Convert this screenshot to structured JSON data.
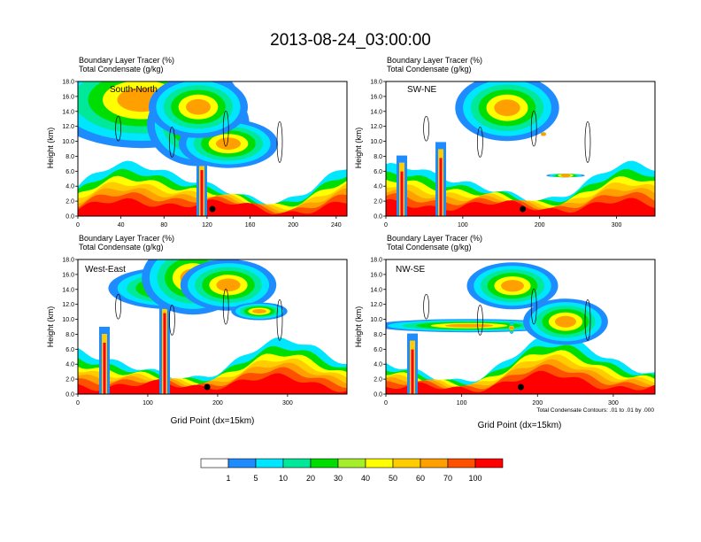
{
  "title": "2013-08-24_03:00:00",
  "panel_subtitle_line1": "Boundary Layer Tracer    (%)",
  "panel_subtitle_line2": "Total Condensate    (g/kg)",
  "x_axis_label": "Grid Point (dx=15km)",
  "y_axis_label": "Height (km)",
  "contour_note": "Total Condensate Contours: .01 to .01 by .000",
  "colors": {
    "levels": [
      "#ffffff",
      "#1e8cff",
      "#00e6ff",
      "#00e89a",
      "#00dd00",
      "#a5ee2a",
      "#ffff00",
      "#ffcc00",
      "#ffa000",
      "#ff5000",
      "#ff0000"
    ]
  },
  "colorbar": {
    "labels": [
      "1",
      "5",
      "10",
      "20",
      "30",
      "40",
      "50",
      "60",
      "70",
      "100"
    ]
  },
  "chart_data": [
    {
      "type": "heatmap",
      "name": "South-North",
      "xlim": [
        0,
        250
      ],
      "ylim": [
        0,
        18
      ],
      "xticks": [
        "0",
        "40",
        "80",
        "120",
        "160",
        "200",
        "240"
      ],
      "yticks": [
        "0.0",
        "2.0",
        "4.0",
        "6.0",
        "8.0",
        "10.0",
        "12.0",
        "14.0",
        "16.0",
        "18.0"
      ],
      "xlabel": "",
      "ylabel": "Height (km)",
      "marker_x": 125
    },
    {
      "type": "heatmap",
      "name": "SW-NE",
      "xlim": [
        0,
        350
      ],
      "ylim": [
        0,
        18
      ],
      "xticks": [
        "0",
        "100",
        "200",
        "300"
      ],
      "yticks": [
        "0.0",
        "2.0",
        "4.0",
        "6.0",
        "8.0",
        "10.0",
        "12.0",
        "14.0",
        "16.0",
        "18.0"
      ],
      "xlabel": "",
      "ylabel": "Height (km)",
      "marker_x": 178
    },
    {
      "type": "heatmap",
      "name": "West-East",
      "xlim": [
        0,
        385
      ],
      "ylim": [
        0,
        18
      ],
      "xticks": [
        "0",
        "100",
        "200",
        "300"
      ],
      "yticks": [
        "0.0",
        "2.0",
        "4.0",
        "6.0",
        "8.0",
        "10.0",
        "12.0",
        "14.0",
        "16.0",
        "18.0"
      ],
      "xlabel": "Grid Point (dx=15km)",
      "ylabel": "Height (km)",
      "marker_x": 185
    },
    {
      "type": "heatmap",
      "name": "NW-SE",
      "xlim": [
        0,
        355
      ],
      "ylim": [
        0,
        18
      ],
      "xticks": [
        "0",
        "100",
        "200",
        "300"
      ],
      "yticks": [
        "0.0",
        "2.0",
        "4.0",
        "6.0",
        "8.0",
        "10.0",
        "12.0",
        "14.0",
        "16.0",
        "18.0"
      ],
      "xlabel": "Grid Point (dx=15km)",
      "ylabel": "Height (km)",
      "marker_x": 178
    }
  ]
}
